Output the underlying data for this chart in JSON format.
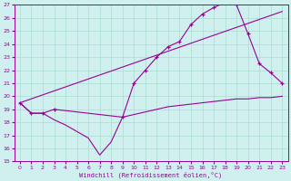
{
  "xlabel": "Windchill (Refroidissement éolien,°C)",
  "xlim": [
    -0.5,
    23.5
  ],
  "ylim": [
    15,
    27
  ],
  "xticks": [
    0,
    1,
    2,
    3,
    4,
    5,
    6,
    7,
    8,
    9,
    10,
    11,
    12,
    13,
    14,
    15,
    16,
    17,
    18,
    19,
    20,
    21,
    22,
    23
  ],
  "yticks": [
    15,
    16,
    17,
    18,
    19,
    20,
    21,
    22,
    23,
    24,
    25,
    26,
    27
  ],
  "bg_color": "#cff0ee",
  "grid_color": "#aaddcc",
  "line_color": "#990099",
  "series": [
    {
      "x": [
        0,
        1,
        2,
        3,
        4,
        5,
        6,
        7,
        8,
        9,
        10,
        11,
        12,
        13,
        14,
        15,
        16,
        17,
        18,
        19,
        20,
        21,
        22,
        23
      ],
      "y": [
        19.5,
        18.7,
        18.7,
        18.2,
        17.8,
        17.3,
        16.8,
        15.5,
        16.5,
        18.4,
        18.6,
        18.8,
        19.0,
        19.2,
        19.3,
        19.4,
        19.5,
        19.6,
        19.7,
        19.8,
        19.8,
        19.9,
        19.9,
        20.0
      ],
      "marker": false
    },
    {
      "x": [
        0,
        23
      ],
      "y": [
        19.5,
        26.5
      ],
      "marker": false
    },
    {
      "x": [
        0,
        1,
        2,
        3,
        9,
        10,
        11,
        12,
        13,
        14,
        15,
        16,
        17,
        18,
        19,
        20,
        21,
        22,
        23
      ],
      "y": [
        19.5,
        18.7,
        18.7,
        19.0,
        18.4,
        21.0,
        22.0,
        23.0,
        23.8,
        24.2,
        25.5,
        26.3,
        26.8,
        27.2,
        27.0,
        24.8,
        22.5,
        21.8,
        21.0
      ],
      "marker": true
    }
  ]
}
